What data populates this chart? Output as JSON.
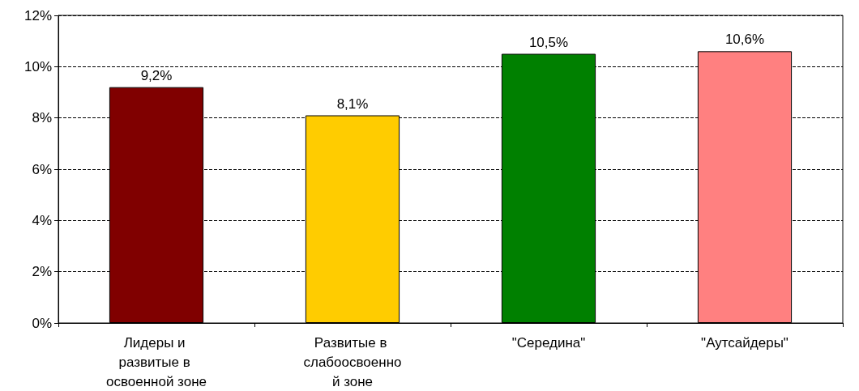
{
  "chart_data": {
    "type": "bar",
    "categories": [
      "Лидеры и развитые в освоенной зоне",
      "Развитые в слабоосвоенной зоне",
      "\"Середина\"",
      "\"Аутсайдеры\""
    ],
    "values": [
      9.2,
      8.1,
      10.5,
      10.6
    ],
    "colors": [
      "#800000",
      "#ffcc00",
      "#008000",
      "#ff8080"
    ],
    "value_labels": [
      "9,2%",
      "8,1%",
      "10,5%",
      "10,6%"
    ],
    "ylim": [
      0,
      12
    ],
    "yticks": [
      {
        "value": 0,
        "label": "0%"
      },
      {
        "value": 2,
        "label": "2%"
      },
      {
        "value": 4,
        "label": "4%"
      },
      {
        "value": 6,
        "label": "6%"
      },
      {
        "value": 8,
        "label": "8%"
      },
      {
        "value": 10,
        "label": "10%"
      },
      {
        "value": 12,
        "label": "12%"
      }
    ],
    "grid": "y"
  }
}
